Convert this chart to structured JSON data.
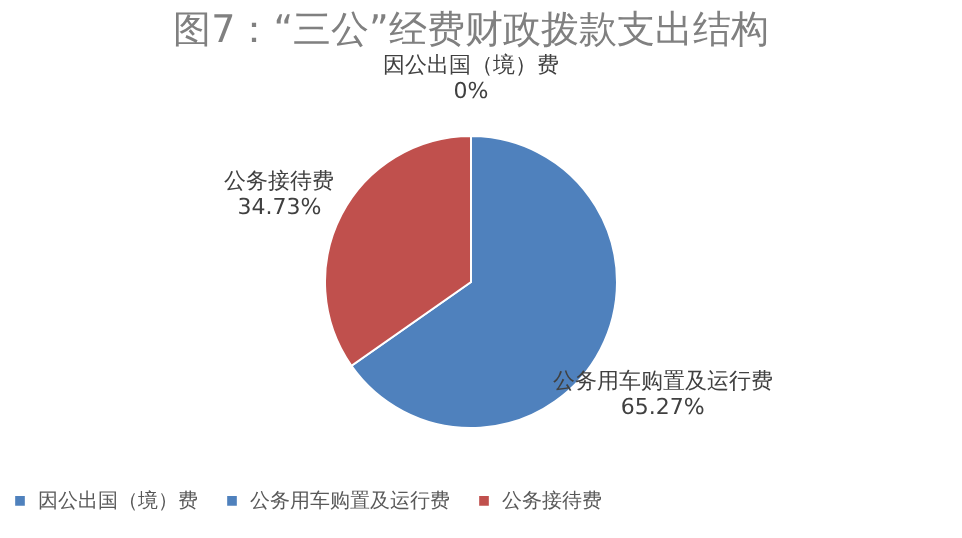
{
  "chart_data": {
    "type": "pie",
    "title": "图7：“三公”经费财政拨款支出结构",
    "categories": [
      "因公出国（境）费",
      "公务用车购置及运行费",
      "公务接待费"
    ],
    "values": [
      0,
      65.27,
      34.73
    ],
    "colors": [
      "#4f81bd",
      "#4f81bd",
      "#c0504d"
    ],
    "value_labels": [
      "0%",
      "65.27%",
      "34.73%"
    ],
    "legend": "bottom"
  }
}
